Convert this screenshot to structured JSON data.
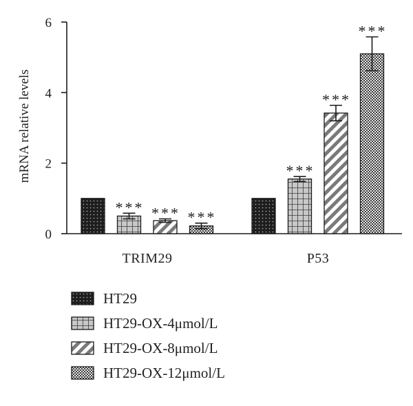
{
  "chart_data": {
    "type": "bar",
    "ylabel": "mRNA relative levels",
    "xlabel": "",
    "ylim": [
      0,
      6
    ],
    "yticks": [
      0,
      2,
      4,
      6
    ],
    "categories": [
      "TRIM29",
      "P53"
    ],
    "series": [
      {
        "name": "HT29",
        "values": [
          1.0,
          1.0
        ],
        "errors": [
          0,
          0
        ],
        "significance": [
          "",
          ""
        ],
        "pattern": "dots-dark"
      },
      {
        "name": "HT29-OX-4μmol/L",
        "values": [
          0.5,
          1.55
        ],
        "errors": [
          0.08,
          0.07
        ],
        "significance": [
          "***",
          "***"
        ],
        "pattern": "grid"
      },
      {
        "name": "HT29-OX-8μmol/L",
        "values": [
          0.37,
          3.42
        ],
        "errors": [
          0.05,
          0.22
        ],
        "significance": [
          "***",
          "***"
        ],
        "pattern": "diagonal"
      },
      {
        "name": "HT29-OX-12μmol/L",
        "values": [
          0.22,
          5.1
        ],
        "errors": [
          0.08,
          0.48
        ],
        "significance": [
          "***",
          "***"
        ],
        "pattern": "checker"
      }
    ],
    "legend_position": "bottom"
  },
  "colors": {
    "bar_stroke": "#1a1a1a",
    "text": "#222222"
  }
}
